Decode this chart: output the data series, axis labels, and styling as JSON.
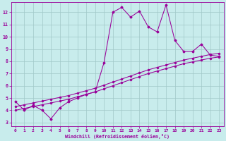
{
  "xlabel": "Windchill (Refroidissement éolien,°C)",
  "bg_color": "#c8ecec",
  "grid_color": "#a0c8c8",
  "line_color": "#990099",
  "xlim": [
    -0.5,
    23.5
  ],
  "ylim": [
    2.7,
    12.8
  ],
  "xticks": [
    0,
    1,
    2,
    3,
    4,
    5,
    6,
    7,
    8,
    9,
    10,
    11,
    12,
    13,
    14,
    15,
    16,
    17,
    18,
    19,
    20,
    21,
    22,
    23
  ],
  "yticks": [
    3,
    4,
    5,
    6,
    7,
    8,
    9,
    10,
    11,
    12
  ],
  "hours": [
    0,
    1,
    2,
    3,
    4,
    5,
    6,
    7,
    8,
    9,
    10,
    11,
    12,
    13,
    14,
    15,
    16,
    17,
    18,
    19,
    20,
    21,
    22,
    23
  ],
  "data_line": [
    4.7,
    4.0,
    4.4,
    4.0,
    3.3,
    4.2,
    4.7,
    5.0,
    5.3,
    5.5,
    7.9,
    12.0,
    12.4,
    11.6,
    12.1,
    10.8,
    10.4,
    12.6,
    9.7,
    8.8,
    8.8,
    9.4,
    8.5,
    8.4
  ],
  "line2": [
    4.3,
    4.45,
    4.6,
    4.75,
    4.9,
    5.05,
    5.2,
    5.4,
    5.6,
    5.8,
    6.05,
    6.3,
    6.55,
    6.8,
    7.05,
    7.3,
    7.5,
    7.7,
    7.9,
    8.1,
    8.25,
    8.4,
    8.55,
    8.65
  ],
  "line3": [
    4.0,
    4.15,
    4.3,
    4.45,
    4.6,
    4.75,
    4.9,
    5.1,
    5.3,
    5.5,
    5.75,
    6.0,
    6.25,
    6.5,
    6.75,
    7.0,
    7.2,
    7.4,
    7.6,
    7.8,
    7.95,
    8.1,
    8.25,
    8.35
  ]
}
